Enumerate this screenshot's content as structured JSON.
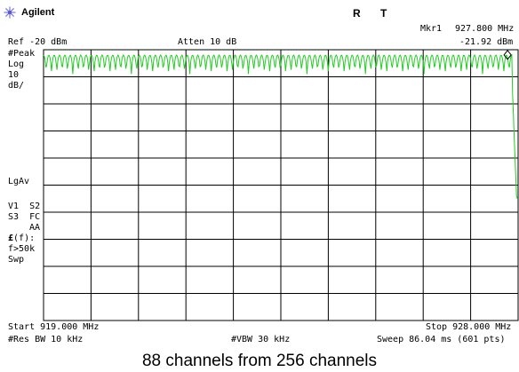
{
  "header": {
    "brand": "Agilent",
    "status_r": "R",
    "status_t": "T",
    "marker_label": "Mkr1",
    "marker_freq": "927.800 MHz",
    "marker_amp": "-21.92 dBm",
    "ref_level": "Ref -20 dBm",
    "atten": "Atten 10 dB"
  },
  "left_annotations": {
    "peak": "#Peak",
    "log": "Log",
    "scale_value": "10",
    "scale_unit": "dB/",
    "lgav": "LgAv",
    "v1s2": "V1  S2",
    "s3fc": "S3  FC",
    "aa": "AA",
    "ff_symbol": "£",
    "ff_rest": "(f):",
    "f50k": "f>50k",
    "swp": "Swp"
  },
  "footer": {
    "start": "Start 919.000 MHz",
    "stop": "Stop 928.000 MHz",
    "rbw": "#Res BW 10 kHz",
    "vbw": "#VBW 30 kHz",
    "sweep": "Sweep 86.04 ms (601 pts)"
  },
  "caption": "88 channels from 256 channels",
  "colors": {
    "trace": "#22cc22",
    "grid": "#000000",
    "background": "#ffffff"
  },
  "chart_data": {
    "type": "line",
    "x_start_mhz": 919.0,
    "x_stop_mhz": 928.0,
    "points": 601,
    "ref_level_dbm": -20,
    "db_per_div": 10,
    "divisions_x": 10,
    "divisions_y": 10,
    "channels": 88,
    "channel_peak_dbm": -22,
    "channel_trough_dbm": -29,
    "floor_dbm": -75,
    "band_end_mhz": 927.88,
    "marker": {
      "x_mhz": 927.8,
      "y_dbm": -21.92
    }
  }
}
